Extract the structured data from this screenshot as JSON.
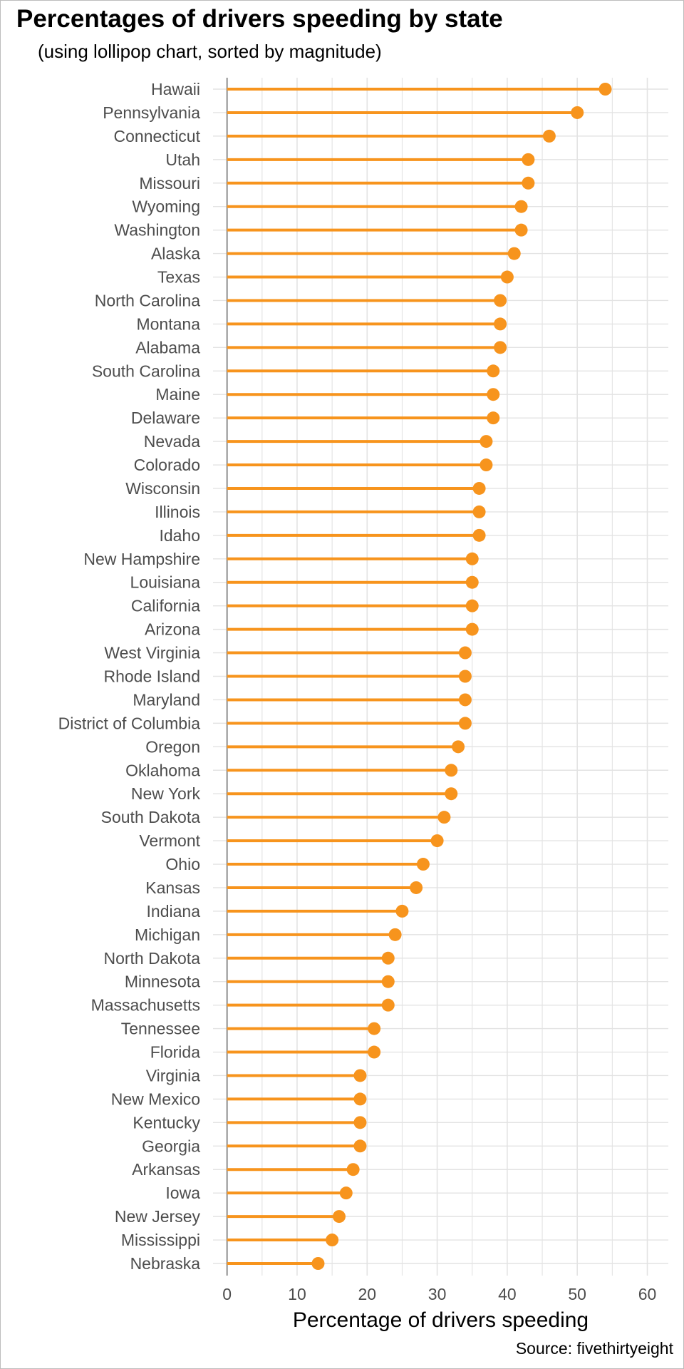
{
  "chart_data": {
    "type": "lollipop",
    "title": "Percentages of drivers speeding by state",
    "subtitle": "(using lollipop chart, sorted by magnitude)",
    "xlabel": "Percentage of drivers speeding",
    "ylabel": "",
    "caption": "Source: fivethirtyeight",
    "xlim": [
      -2,
      63
    ],
    "xticks": [
      0,
      10,
      20,
      30,
      40,
      50,
      60
    ],
    "grid": true,
    "legend": "none",
    "color": "#f7941d",
    "categories": [
      "Hawaii",
      "Pennsylvania",
      "Connecticut",
      "Utah",
      "Missouri",
      "Wyoming",
      "Washington",
      "Alaska",
      "Texas",
      "North Carolina",
      "Montana",
      "Alabama",
      "South Carolina",
      "Maine",
      "Delaware",
      "Nevada",
      "Colorado",
      "Wisconsin",
      "Illinois",
      "Idaho",
      "New Hampshire",
      "Louisiana",
      "California",
      "Arizona",
      "West Virginia",
      "Rhode Island",
      "Maryland",
      "District of Columbia",
      "Oregon",
      "Oklahoma",
      "New York",
      "South Dakota",
      "Vermont",
      "Ohio",
      "Kansas",
      "Indiana",
      "Michigan",
      "North Dakota",
      "Minnesota",
      "Massachusetts",
      "Tennessee",
      "Florida",
      "Virginia",
      "New Mexico",
      "Kentucky",
      "Georgia",
      "Arkansas",
      "Iowa",
      "New Jersey",
      "Mississippi",
      "Nebraska"
    ],
    "values": [
      54,
      50,
      46,
      43,
      43,
      42,
      42,
      41,
      40,
      39,
      39,
      39,
      38,
      38,
      38,
      37,
      37,
      36,
      36,
      36,
      35,
      35,
      35,
      35,
      34,
      34,
      34,
      34,
      33,
      32,
      32,
      31,
      30,
      28,
      27,
      25,
      24,
      23,
      23,
      23,
      21,
      21,
      19,
      19,
      19,
      19,
      18,
      17,
      16,
      15,
      13
    ]
  }
}
